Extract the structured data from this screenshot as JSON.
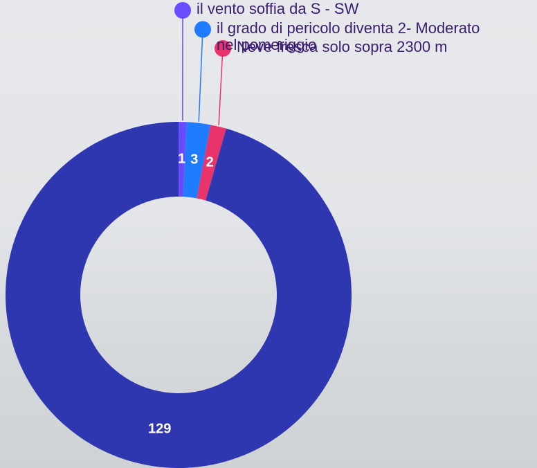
{
  "chart_data": {
    "type": "donut",
    "categories": [
      "il vento soffia da S - SW",
      "il grado di pericolo diventa 2- Moderato nel pomeriggio",
      "Neve fresca solo sopra 2300 m",
      null
    ],
    "values": [
      1,
      3,
      2,
      129
    ],
    "colors": [
      "#6a4cff",
      "#1f7cff",
      "#e8336b",
      "#2f37b0"
    ]
  }
}
